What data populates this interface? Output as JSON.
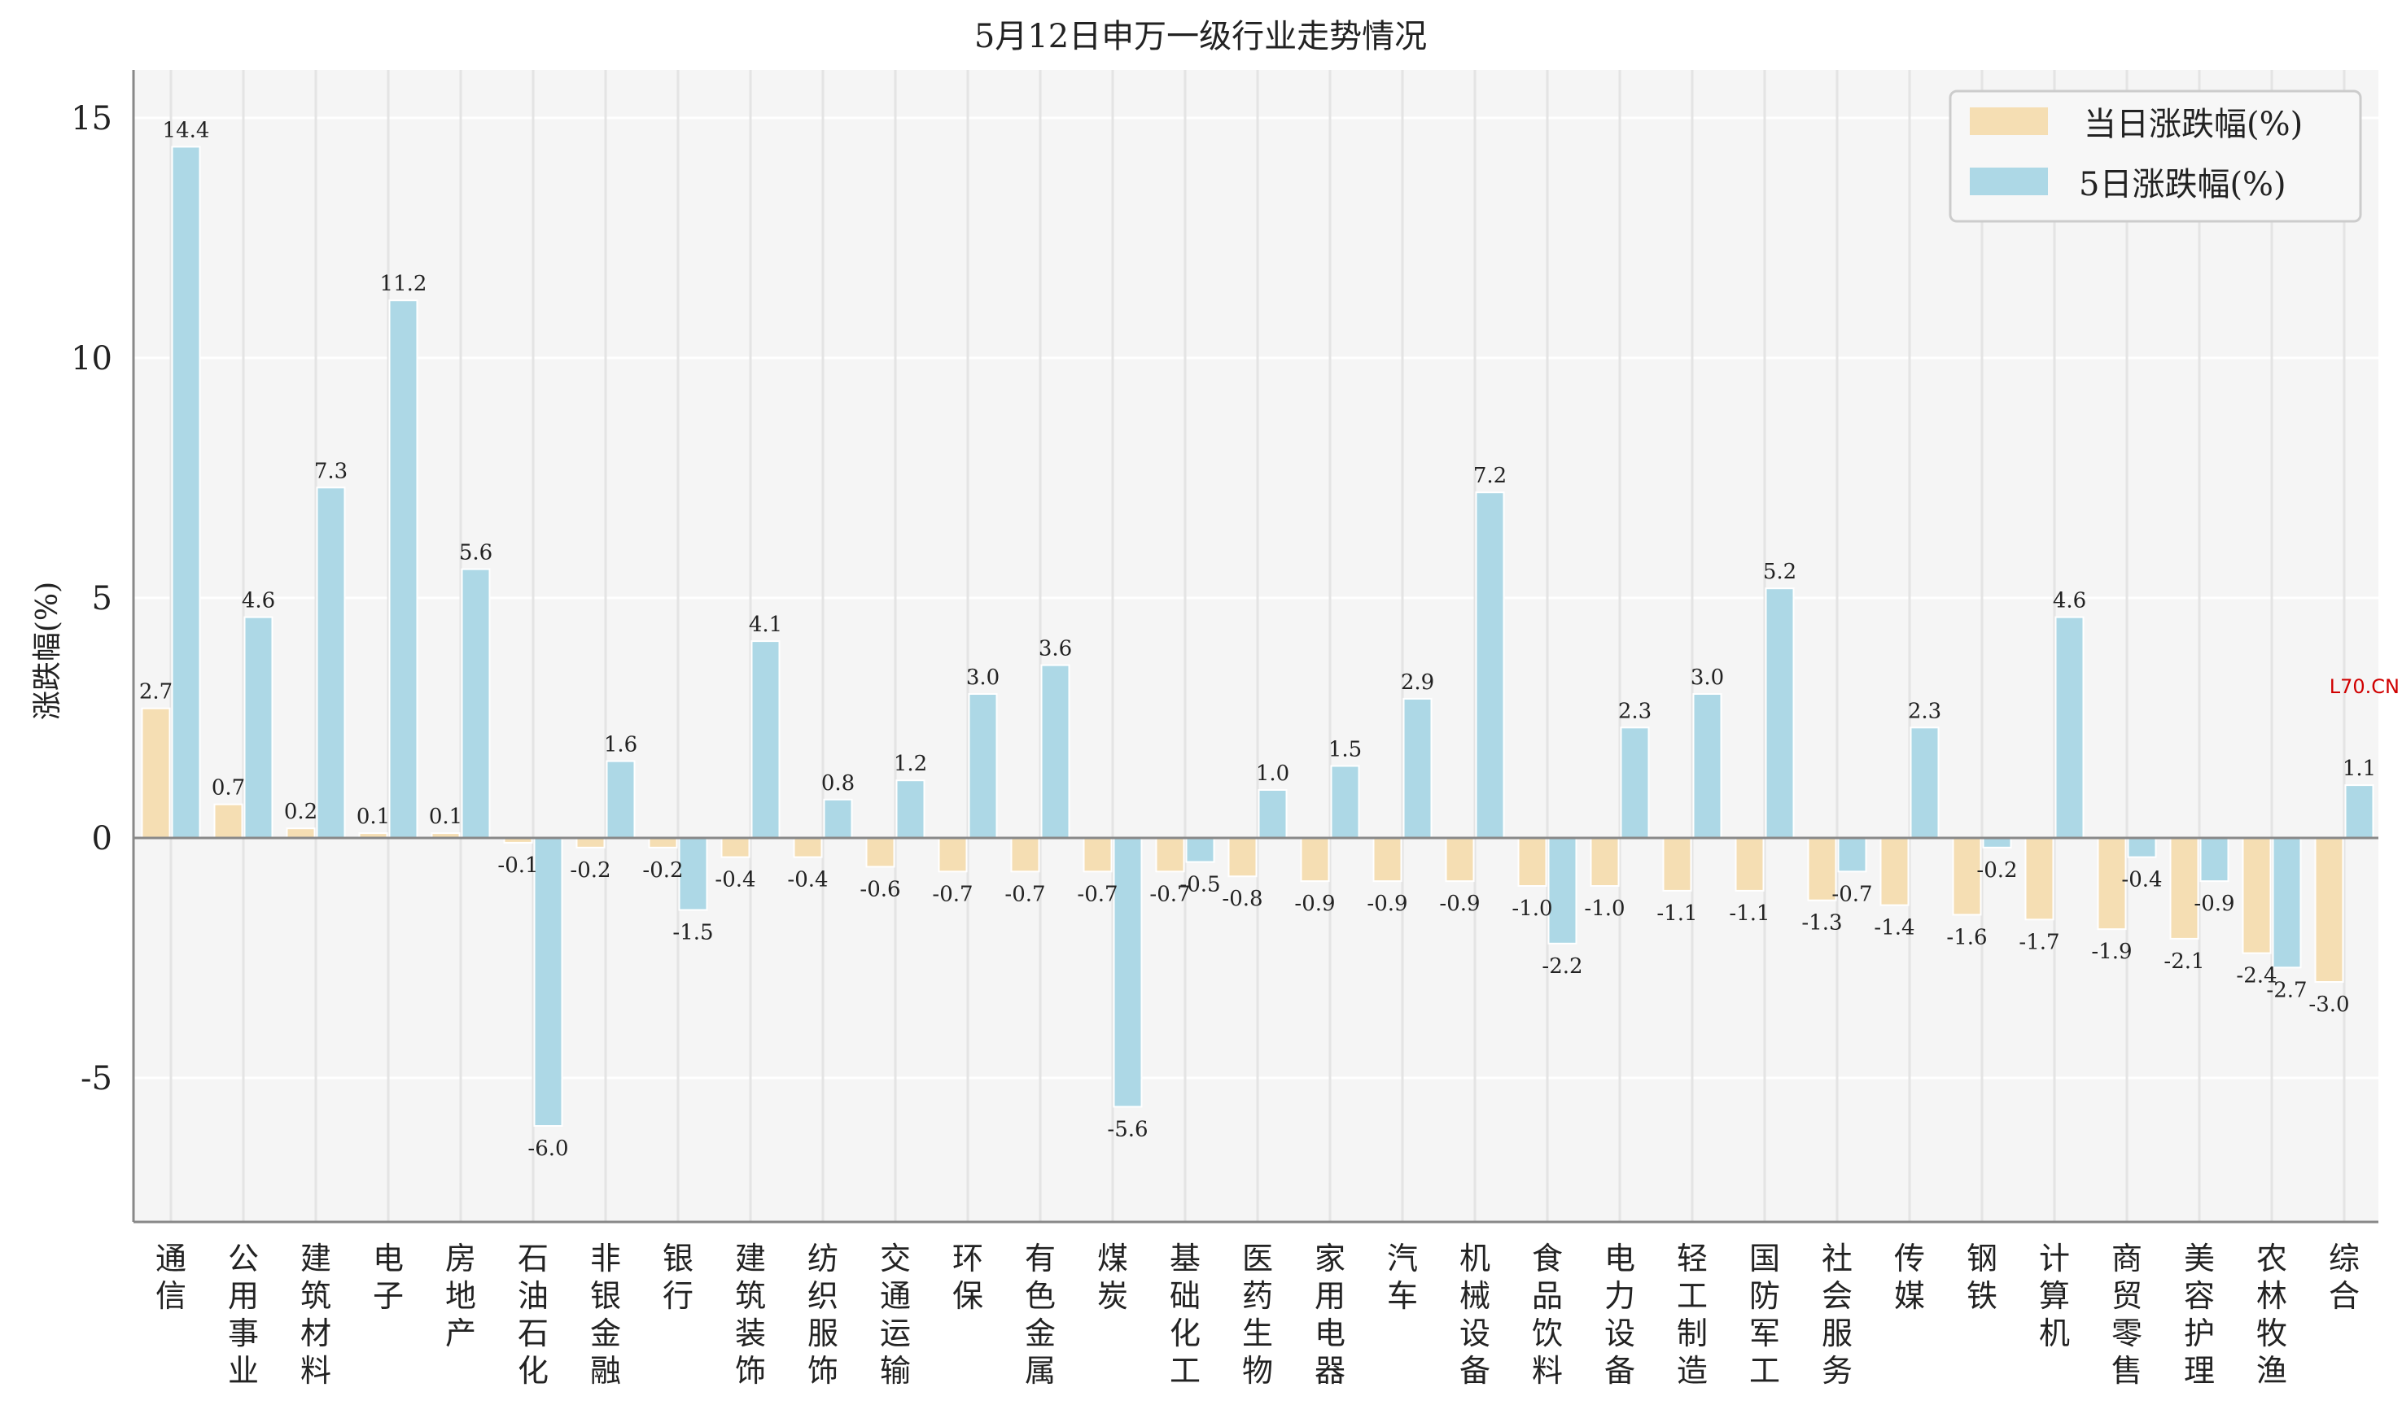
{
  "chart_data": {
    "type": "bar",
    "title": "5月12日申万一级行业走势情况",
    "ylabel": "涨跌幅(%)",
    "xlabel": "",
    "ylim": [
      -8,
      16
    ],
    "yticks": [
      15,
      10,
      5,
      0,
      -5
    ],
    "grid": true,
    "legend_position": "top-right",
    "categories": [
      "通信",
      "公用事业",
      "建筑材料",
      "电子",
      "房地产",
      "石油石化",
      "非银金融",
      "银行",
      "建筑装饰",
      "纺织服饰",
      "交通运输",
      "环保",
      "有色金属",
      "煤炭",
      "基础化工",
      "医药生物",
      "家用电器",
      "汽车",
      "机械设备",
      "食品饮料",
      "电力设备",
      "轻工制造",
      "国防军工",
      "社会服务",
      "传媒",
      "钢铁",
      "计算机",
      "商贸零售",
      "美容护理",
      "农林牧渔",
      "综合"
    ],
    "series": [
      {
        "name": "当日涨跌幅(%)",
        "color": "#f5deb3",
        "values": [
          2.7,
          0.7,
          0.2,
          0.1,
          0.1,
          -0.1,
          -0.2,
          -0.2,
          -0.4,
          -0.4,
          -0.6,
          -0.7,
          -0.7,
          -0.7,
          -0.7,
          -0.8,
          -0.9,
          -0.9,
          -0.9,
          -1.0,
          -1.0,
          -1.1,
          -1.1,
          -1.3,
          -1.4,
          -1.6,
          -1.7,
          -1.9,
          -2.1,
          -2.4,
          -3.0
        ]
      },
      {
        "name": "5日涨跌幅(%)",
        "color": "#add8e6",
        "values": [
          14.4,
          4.6,
          7.3,
          11.2,
          5.6,
          -6.0,
          1.6,
          -1.5,
          4.1,
          0.8,
          1.2,
          3.0,
          3.6,
          -5.6,
          -0.5,
          1.0,
          1.5,
          2.9,
          7.2,
          -2.2,
          2.3,
          3.0,
          5.2,
          -0.7,
          2.3,
          -0.2,
          4.6,
          -0.4,
          -0.9,
          -2.7,
          1.1
        ]
      }
    ]
  },
  "watermark": "L70.CN",
  "colors": {
    "plot_bg": "#f5f5f5",
    "grid": "#e4e4e4",
    "axis": "#888888",
    "watermark": "#d00000"
  }
}
